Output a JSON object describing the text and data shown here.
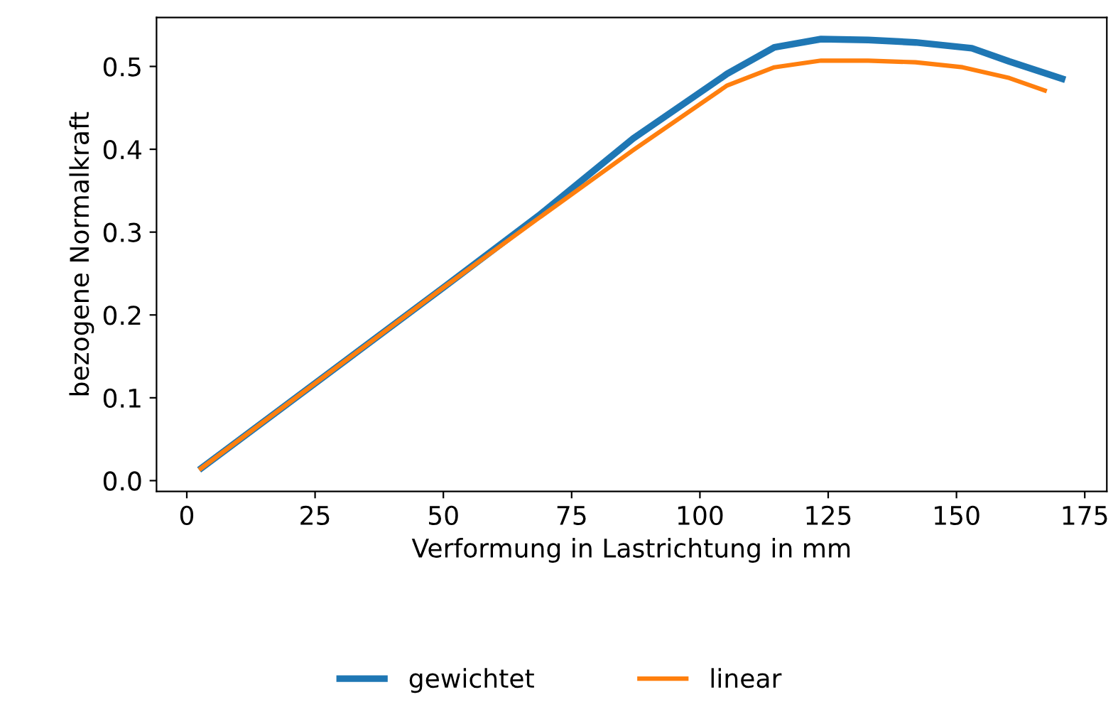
{
  "chart_data": {
    "type": "line",
    "xlabel": "Verformung in Lastrichtung in mm",
    "ylabel": "bezogene Normalkraft",
    "xlim": [
      -5.9,
      179.3
    ],
    "ylim": [
      -0.013,
      0.559
    ],
    "xticks": [
      0,
      25,
      50,
      75,
      100,
      125,
      150,
      175
    ],
    "yticks": [
      {
        "value": 0,
        "label": "0.0"
      },
      0.1,
      0.2,
      0.3,
      0.4,
      0.5
    ],
    "grid": false,
    "legend": "bottom",
    "line_style": "solid",
    "marker": "none",
    "series": [
      {
        "name": "gewichtet",
        "color": "#1f77b4",
        "x": [
          2.4,
          50,
          68.6,
          87,
          105.3,
          114.5,
          123.6,
          132.8,
          142,
          153,
          160.3,
          171.2
        ],
        "values": [
          0.013,
          0.233,
          0.32,
          0.413,
          0.491,
          0.523,
          0.533,
          0.532,
          0.529,
          0.522,
          0.506,
          0.484
        ]
      },
      {
        "name": "linear",
        "color": "#ff7f0e",
        "x": [
          2.4,
          50,
          68.6,
          87,
          105.3,
          114.5,
          123.6,
          132.8,
          142,
          151.2,
          160.3,
          167.6
        ],
        "values": [
          0.013,
          0.233,
          0.317,
          0.399,
          0.477,
          0.499,
          0.507,
          0.507,
          0.505,
          0.499,
          0.486,
          0.47
        ]
      }
    ]
  }
}
